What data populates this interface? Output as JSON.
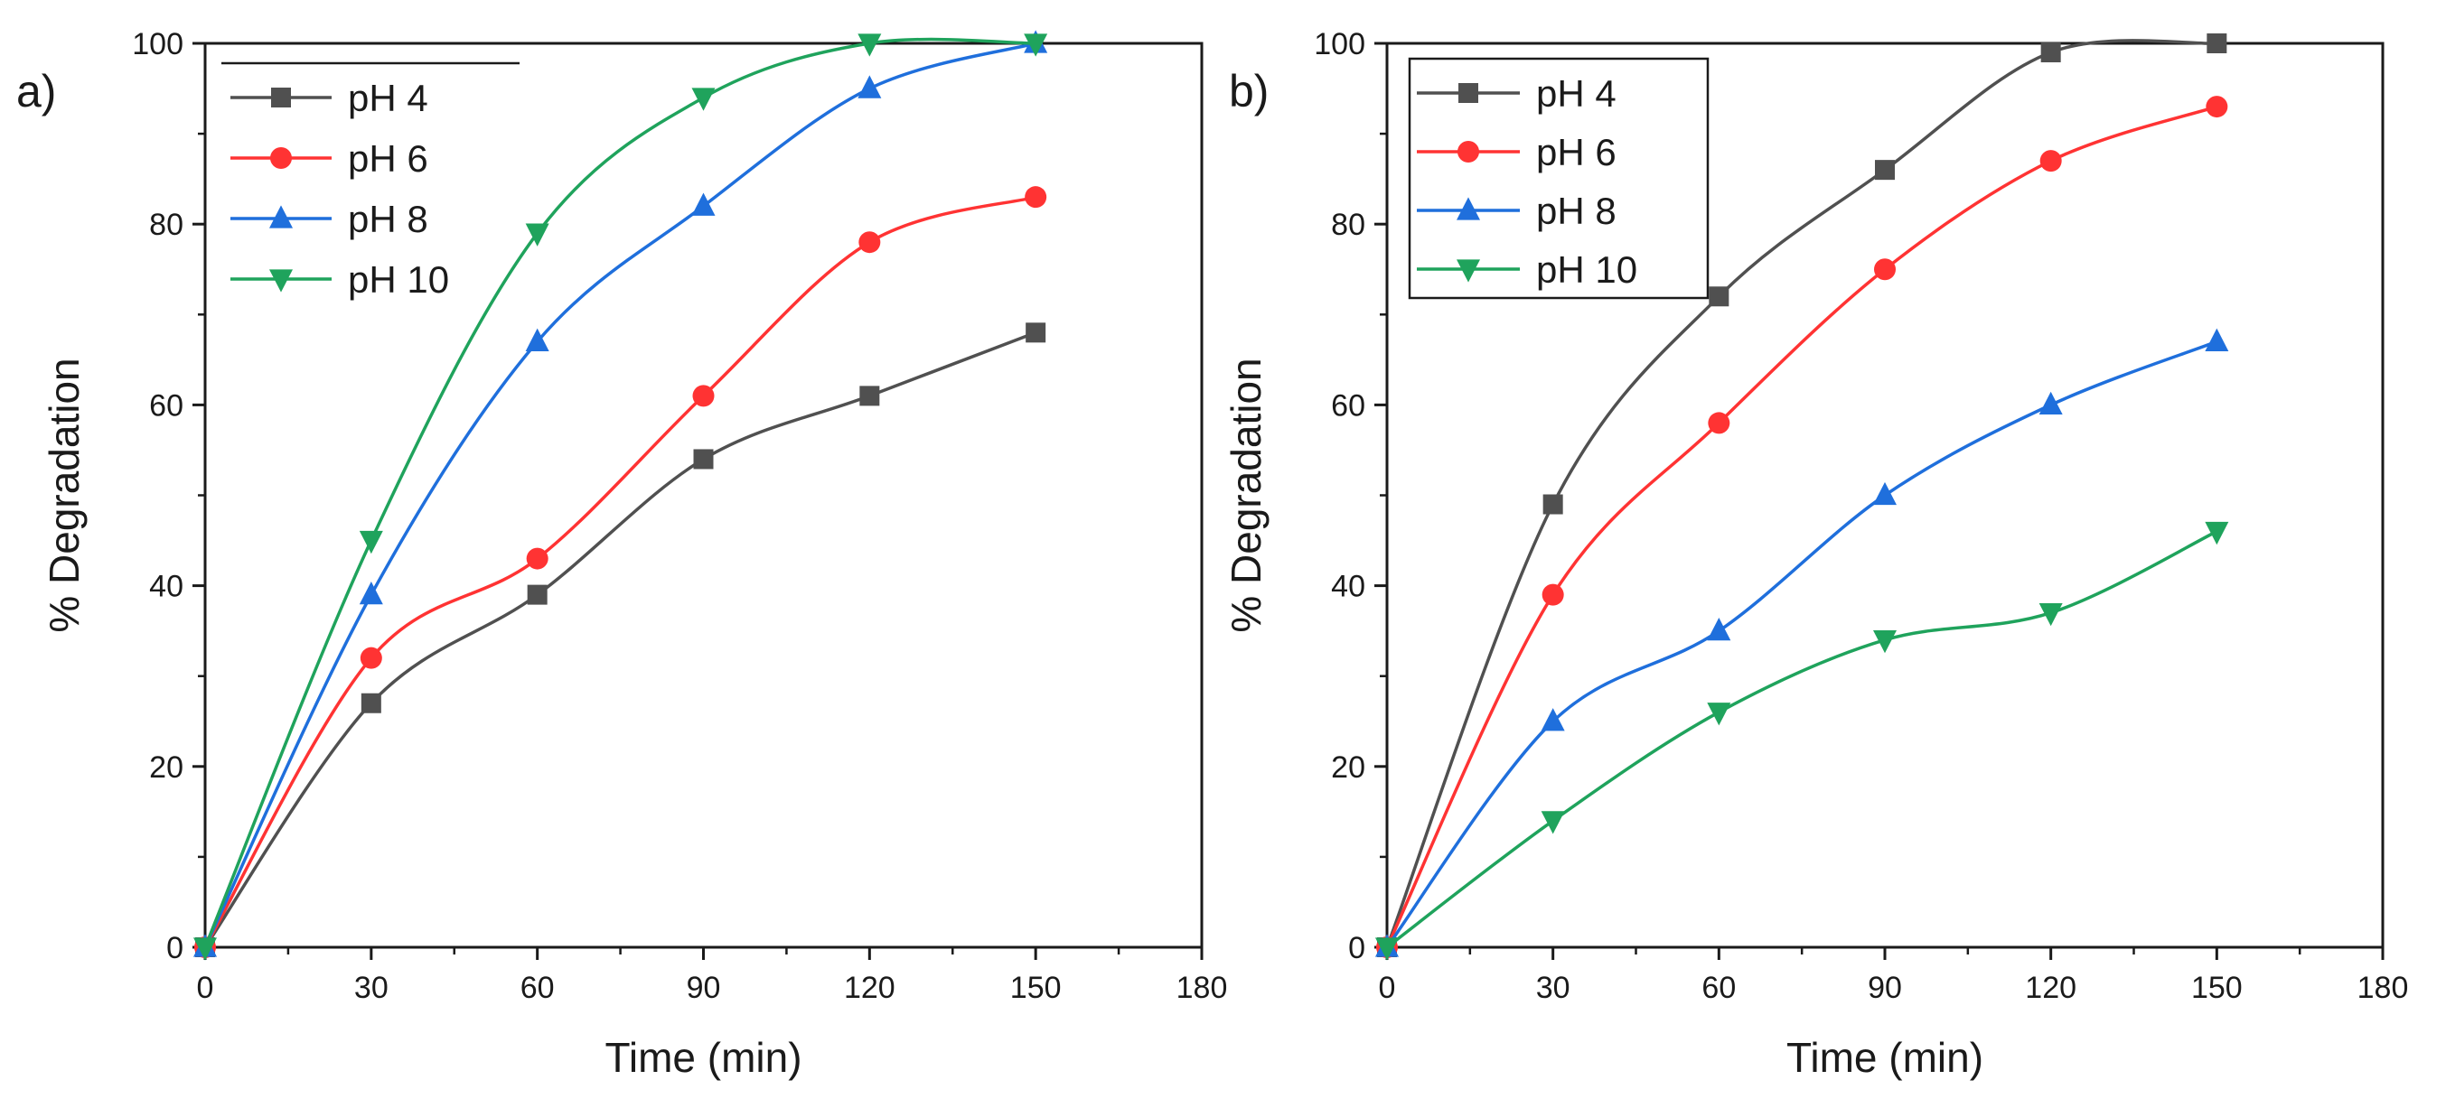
{
  "chart_data": [
    {
      "type": "line",
      "panel_label": "a)",
      "xlabel": "Time (min)",
      "ylabel": "% Degradation",
      "xlim": [
        0,
        180
      ],
      "ylim": [
        0,
        100
      ],
      "xticks": [
        0,
        30,
        60,
        90,
        120,
        150,
        180
      ],
      "yticks": [
        0,
        20,
        40,
        60,
        80,
        100
      ],
      "x": [
        0,
        30,
        60,
        90,
        120,
        150
      ],
      "legend_position": "top-left",
      "series": [
        {
          "name": "pH 4",
          "color": "#505050",
          "marker": "square",
          "values": [
            0,
            27,
            39,
            54,
            61,
            68
          ]
        },
        {
          "name": "pH 6",
          "color": "#ff3333",
          "marker": "circle",
          "values": [
            0,
            32,
            43,
            61,
            78,
            83
          ]
        },
        {
          "name": "pH 8",
          "color": "#1f6fdc",
          "marker": "triangle-up",
          "values": [
            0,
            39,
            67,
            82,
            95,
            100
          ]
        },
        {
          "name": "pH 10",
          "color": "#1fa35c",
          "marker": "triangle-down",
          "values": [
            0,
            45,
            79,
            94,
            100,
            100
          ]
        }
      ]
    },
    {
      "type": "line",
      "panel_label": "b)",
      "xlabel": "Time (min)",
      "ylabel": "% Degradation",
      "xlim": [
        0,
        180
      ],
      "ylim": [
        0,
        100
      ],
      "xticks": [
        0,
        30,
        60,
        90,
        120,
        150,
        180
      ],
      "yticks": [
        0,
        20,
        40,
        60,
        80,
        100
      ],
      "x": [
        0,
        30,
        60,
        90,
        120,
        150
      ],
      "legend_position": "top-left",
      "series": [
        {
          "name": "pH 4",
          "color": "#505050",
          "marker": "square",
          "values": [
            0,
            49,
            72,
            86,
            99,
            100
          ]
        },
        {
          "name": "pH 6",
          "color": "#ff3333",
          "marker": "circle",
          "values": [
            0,
            39,
            58,
            75,
            87,
            93
          ]
        },
        {
          "name": "pH 8",
          "color": "#1f6fdc",
          "marker": "triangle-up",
          "values": [
            0,
            25,
            35,
            50,
            60,
            67
          ]
        },
        {
          "name": "pH 10",
          "color": "#1fa35c",
          "marker": "triangle-down",
          "values": [
            0,
            14,
            26,
            34,
            37,
            46
          ]
        }
      ]
    }
  ]
}
